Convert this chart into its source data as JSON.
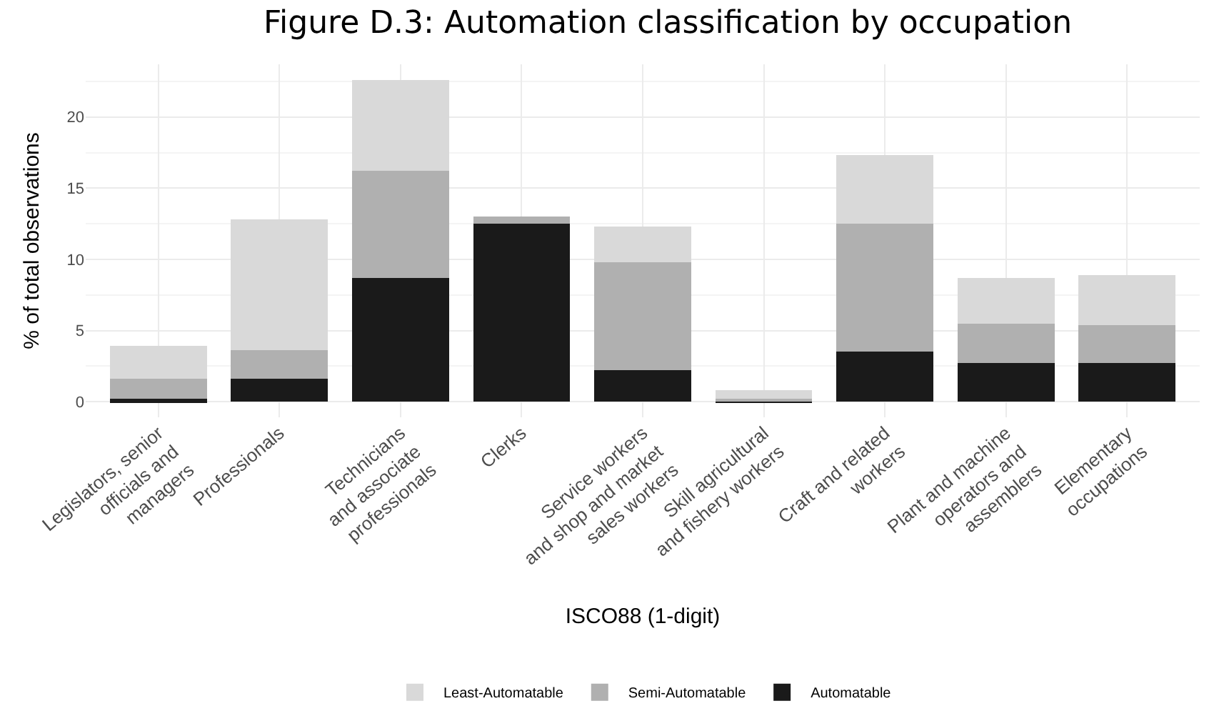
{
  "chart_data": {
    "type": "bar",
    "title": "Figure D.3: Automation classification by occupation",
    "xlabel": "ISCO88 (1-digit)",
    "ylabel": "% of total observations",
    "categories": [
      "Legislators, senior\nofficials and\nmanagers",
      "Professionals",
      "Technicians\nand associate\nprofessionals",
      "Clerks",
      "Service workers\nand shop and market\nsales workers",
      "Skill agricultural\nand fishery workers",
      "Craft and related\nworkers",
      "Plant and machine\noperators and\nassemblers",
      "Elementary\noccupations"
    ],
    "stacked": true,
    "series": [
      {
        "name": "Automatable",
        "color": "#1a1a1a",
        "values": [
          0.2,
          1.6,
          8.7,
          12.5,
          2.2,
          0.1,
          3.5,
          2.7,
          2.7
        ]
      },
      {
        "name": "Semi-Automatable",
        "color": "#b0b0b0",
        "values": [
          1.4,
          2.0,
          7.5,
          0.5,
          7.6,
          0.1,
          9.0,
          2.8,
          2.7
        ]
      },
      {
        "name": "Least-Automatable",
        "color": "#d9d9d9",
        "values": [
          2.3,
          9.2,
          6.4,
          0,
          2.5,
          0.6,
          4.8,
          3.2,
          3.5
        ]
      }
    ],
    "ylim": [
      -1.1,
      23.7
    ],
    "yticks": [
      0,
      5,
      10,
      15,
      20
    ],
    "grid": true,
    "legend": "bottom"
  }
}
